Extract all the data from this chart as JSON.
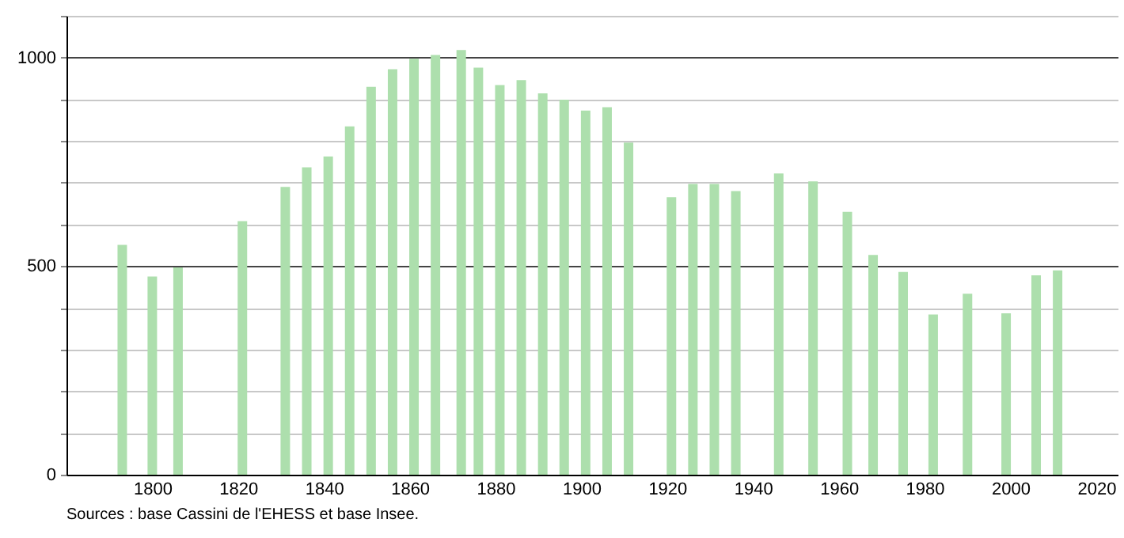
{
  "chart_data": {
    "type": "bar",
    "x": [
      1793,
      1800,
      1806,
      1821,
      1831,
      1836,
      1841,
      1846,
      1851,
      1856,
      1861,
      1866,
      1872,
      1876,
      1881,
      1886,
      1891,
      1896,
      1901,
      1906,
      1911,
      1921,
      1926,
      1931,
      1936,
      1946,
      1954,
      1962,
      1968,
      1975,
      1982,
      1990,
      1999,
      2006,
      2011
    ],
    "values": [
      551,
      475,
      497,
      608,
      690,
      737,
      763,
      835,
      930,
      972,
      997,
      1006,
      1018,
      976,
      934,
      946,
      914,
      899,
      873,
      881,
      796,
      665,
      697,
      697,
      680,
      722,
      703,
      630,
      527,
      486,
      384,
      434,
      387,
      478,
      490
    ],
    "color": "#addfad",
    "xlim": [
      1780,
      2025
    ],
    "xticks": [
      1800,
      1820,
      1840,
      1860,
      1880,
      1900,
      1920,
      1940,
      1960,
      1980,
      2000,
      2020
    ],
    "ylim": [
      0,
      1100
    ],
    "yticks": [
      0,
      {
        "value": 100,
        "label": null
      },
      {
        "value": 200,
        "label": null
      },
      {
        "value": 300,
        "label": null
      },
      {
        "value": 400,
        "label": null
      },
      500,
      {
        "value": 600,
        "label": null
      },
      {
        "value": 700,
        "label": null
      },
      {
        "value": 800,
        "label": null
      },
      {
        "value": 900,
        "label": null
      },
      1000,
      {
        "value": 1100,
        "label": null
      }
    ],
    "grid": "y",
    "annotations": [
      "Sources : base Cassini de l'EHESS et base Insee."
    ]
  }
}
